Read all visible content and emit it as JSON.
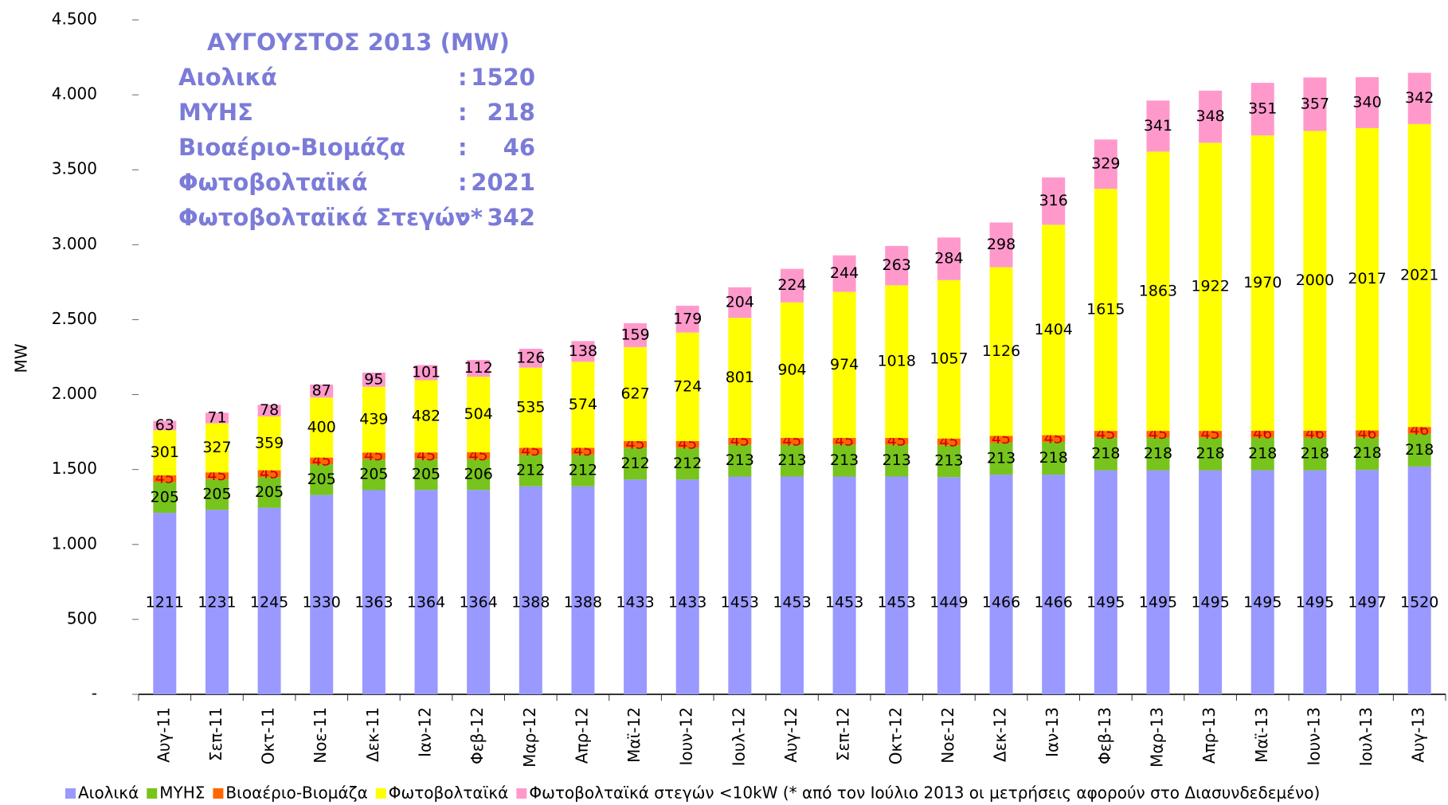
{
  "chart_data": {
    "type": "stacked-bar",
    "y_label": "MW",
    "categories": [
      "Αυγ-11",
      "Σεπ-11",
      "Οκτ-11",
      "Νοε-11",
      "Δεκ-11",
      "Ιαν-12",
      "Φεβ-12",
      "Μαρ-12",
      "Απρ-12",
      "Μαϊ-12",
      "Ιουν-12",
      "Ιουλ-12",
      "Αυγ-12",
      "Σεπ-12",
      "Οκτ-12",
      "Νοε-12",
      "Δεκ-12",
      "Ιαν-13",
      "Φεβ-13",
      "Μαρ-13",
      "Απρ-13",
      "Μαϊ-13",
      "Ιουν-13",
      "Ιουλ-13",
      "Αυγ-13"
    ],
    "series": [
      {
        "name": "Αιολικά",
        "color": "#9999ff",
        "label_color": "#000000",
        "values": [
          1211,
          1231,
          1245,
          1330,
          1363,
          1364,
          1364,
          1388,
          1388,
          1433,
          1433,
          1453,
          1453,
          1453,
          1453,
          1449,
          1466,
          1466,
          1495,
          1495,
          1495,
          1495,
          1495,
          1497,
          1520
        ]
      },
      {
        "name": "ΜΥΗΣ",
        "color": "#77c41c",
        "label_color": "#000000",
        "values": [
          205,
          205,
          205,
          205,
          205,
          205,
          206,
          212,
          212,
          212,
          212,
          213,
          213,
          213,
          213,
          213,
          213,
          218,
          218,
          218,
          218,
          218,
          218,
          218,
          218
        ]
      },
      {
        "name": "Βιοαέριο-Βιομάζα",
        "color": "#ff6600",
        "label_color": "#cc0000",
        "values": [
          45,
          45,
          45,
          45,
          45,
          45,
          45,
          45,
          45,
          45,
          45,
          45,
          45,
          45,
          45,
          45,
          45,
          45,
          45,
          45,
          45,
          46,
          46,
          46,
          46
        ]
      },
      {
        "name": "Φωτοβολταϊκά",
        "color": "#ffff00",
        "label_color": "#000000",
        "values": [
          301,
          327,
          359,
          400,
          439,
          482,
          504,
          535,
          574,
          627,
          724,
          801,
          904,
          974,
          1018,
          1057,
          1126,
          1404,
          1615,
          1863,
          1922,
          1970,
          2000,
          2017,
          2021
        ]
      },
      {
        "name": "Φωτοβολταϊκά στεγών <10kW (* από τον Ιούλιο 2013 οι μετρήσεις αφορούν στο Διασυνδεδεμένο)",
        "color": "#ff99cc",
        "label_color": "#000000",
        "values": [
          63,
          71,
          78,
          87,
          95,
          101,
          112,
          126,
          138,
          159,
          179,
          204,
          224,
          244,
          263,
          284,
          298,
          316,
          329,
          341,
          348,
          351,
          357,
          340,
          342
        ]
      }
    ],
    "ylim": [
      0,
      4500
    ],
    "yticks": [
      {
        "value": 0,
        "label": "-"
      },
      500,
      {
        "value": 1000,
        "label": "1.000"
      },
      {
        "value": 1500,
        "label": "1.500"
      },
      {
        "value": 2000,
        "label": "2.000"
      },
      {
        "value": 2500,
        "label": "2.500"
      },
      {
        "value": 3000,
        "label": "3.000"
      },
      {
        "value": 3500,
        "label": "3.500"
      },
      {
        "value": 4000,
        "label": "4.000"
      },
      {
        "value": 4500,
        "label": "4.500"
      }
    ],
    "grid": false,
    "legend": "bottom",
    "annotation": {
      "title": "ΑΥΓΟΥΣΤΟΣ 2013 (MW)",
      "separator": ":",
      "color": "#7b7bd8",
      "rows": [
        {
          "label": "Αιολικά",
          "value": 1520
        },
        {
          "label": "ΜΥΗΣ",
          "value": 218
        },
        {
          "label": "Βιοαέριο-Βιομάζα",
          "value": 46
        },
        {
          "label": "Φωτοβολταϊκά",
          "value": 2021
        },
        {
          "label": "Φωτοβολταϊκά Στεγών*",
          "value": 342
        }
      ]
    }
  }
}
